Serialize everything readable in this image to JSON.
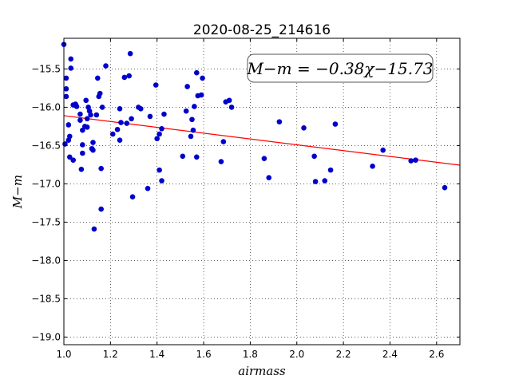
{
  "chart_data": {
    "type": "scatter",
    "title": "2020-08-25_214616",
    "xlabel": "airmass",
    "ylabel": "M−m",
    "xlim": [
      1.0,
      2.7
    ],
    "ylim": [
      -19.1,
      -15.1
    ],
    "y_inverted": true,
    "grid": true,
    "x_ticks": [
      1.0,
      1.2,
      1.4,
      1.6,
      1.8,
      2.0,
      2.2,
      2.4,
      2.6
    ],
    "x_tick_labels": [
      "1.0",
      "1.2",
      "1.4",
      "1.6",
      "1.8",
      "2.0",
      "2.2",
      "2.4",
      "2.6"
    ],
    "y_ticks": [
      -15.5,
      -16.0,
      -16.5,
      -17.0,
      -17.5,
      -18.0,
      -18.5,
      -19.0
    ],
    "y_tick_labels": [
      "−15.5",
      "−16.0",
      "−16.5",
      "−17.0",
      "−17.5",
      "−18.0",
      "−18.5",
      "−19.0"
    ],
    "annotation": "M−m = −0.38χ−15.73",
    "colors": {
      "points": "#0000cc",
      "fit_line": "#ff0000"
    },
    "fit": {
      "slope": -0.38,
      "intercept": -15.73
    },
    "points": [
      [
        1.0,
        -15.18
      ],
      [
        1.005,
        -16.48
      ],
      [
        1.01,
        -15.62
      ],
      [
        1.01,
        -15.76
      ],
      [
        1.01,
        -15.86
      ],
      [
        1.02,
        -16.23
      ],
      [
        1.02,
        -16.43
      ],
      [
        1.025,
        -16.38
      ],
      [
        1.025,
        -16.65
      ],
      [
        1.03,
        -15.37
      ],
      [
        1.03,
        -15.49
      ],
      [
        1.04,
        -16.69
      ],
      [
        1.04,
        -15.97
      ],
      [
        1.05,
        -15.96
      ],
      [
        1.055,
        -15.99
      ],
      [
        1.07,
        -16.09
      ],
      [
        1.07,
        -16.17
      ],
      [
        1.075,
        -16.81
      ],
      [
        1.08,
        -16.3
      ],
      [
        1.08,
        -16.49
      ],
      [
        1.08,
        -16.6
      ],
      [
        1.09,
        -16.25
      ],
      [
        1.095,
        -15.91
      ],
      [
        1.1,
        -16.26
      ],
      [
        1.1,
        -16.15
      ],
      [
        1.105,
        -16.0
      ],
      [
        1.11,
        -16.05
      ],
      [
        1.115,
        -16.1
      ],
      [
        1.12,
        -16.54
      ],
      [
        1.125,
        -16.56
      ],
      [
        1.125,
        -16.46
      ],
      [
        1.13,
        -17.59
      ],
      [
        1.14,
        -16.1
      ],
      [
        1.145,
        -15.62
      ],
      [
        1.15,
        -15.86
      ],
      [
        1.155,
        -15.82
      ],
      [
        1.16,
        -16.8
      ],
      [
        1.16,
        -17.33
      ],
      [
        1.165,
        -16.0
      ],
      [
        1.18,
        -15.46
      ],
      [
        1.21,
        -16.35
      ],
      [
        1.23,
        -16.29
      ],
      [
        1.24,
        -16.02
      ],
      [
        1.24,
        -16.43
      ],
      [
        1.245,
        -16.2
      ],
      [
        1.26,
        -15.61
      ],
      [
        1.27,
        -16.21
      ],
      [
        1.28,
        -15.59
      ],
      [
        1.285,
        -15.3
      ],
      [
        1.29,
        -16.15
      ],
      [
        1.295,
        -17.17
      ],
      [
        1.32,
        -16.0
      ],
      [
        1.33,
        -16.02
      ],
      [
        1.36,
        -17.06
      ],
      [
        1.37,
        -16.12
      ],
      [
        1.395,
        -15.71
      ],
      [
        1.4,
        -16.41
      ],
      [
        1.41,
        -16.82
      ],
      [
        1.41,
        -16.35
      ],
      [
        1.42,
        -16.28
      ],
      [
        1.42,
        -16.96
      ],
      [
        1.43,
        -16.09
      ],
      [
        1.51,
        -16.64
      ],
      [
        1.525,
        -16.05
      ],
      [
        1.53,
        -15.73
      ],
      [
        1.545,
        -16.38
      ],
      [
        1.55,
        -16.16
      ],
      [
        1.555,
        -16.3
      ],
      [
        1.56,
        -15.99
      ],
      [
        1.57,
        -16.65
      ],
      [
        1.57,
        -15.55
      ],
      [
        1.575,
        -15.85
      ],
      [
        1.59,
        -15.84
      ],
      [
        1.595,
        -15.62
      ],
      [
        1.675,
        -16.71
      ],
      [
        1.685,
        -16.45
      ],
      [
        1.695,
        -15.93
      ],
      [
        1.71,
        -15.91
      ],
      [
        1.72,
        -16.0
      ],
      [
        1.86,
        -16.67
      ],
      [
        1.88,
        -16.92
      ],
      [
        1.925,
        -16.19
      ],
      [
        2.03,
        -16.27
      ],
      [
        2.075,
        -16.64
      ],
      [
        2.08,
        -16.97
      ],
      [
        2.12,
        -16.96
      ],
      [
        2.145,
        -16.82
      ],
      [
        2.165,
        -16.22
      ],
      [
        2.325,
        -16.77
      ],
      [
        2.37,
        -16.56
      ],
      [
        2.49,
        -16.7
      ],
      [
        2.51,
        -16.69
      ],
      [
        2.635,
        -17.05
      ]
    ]
  }
}
